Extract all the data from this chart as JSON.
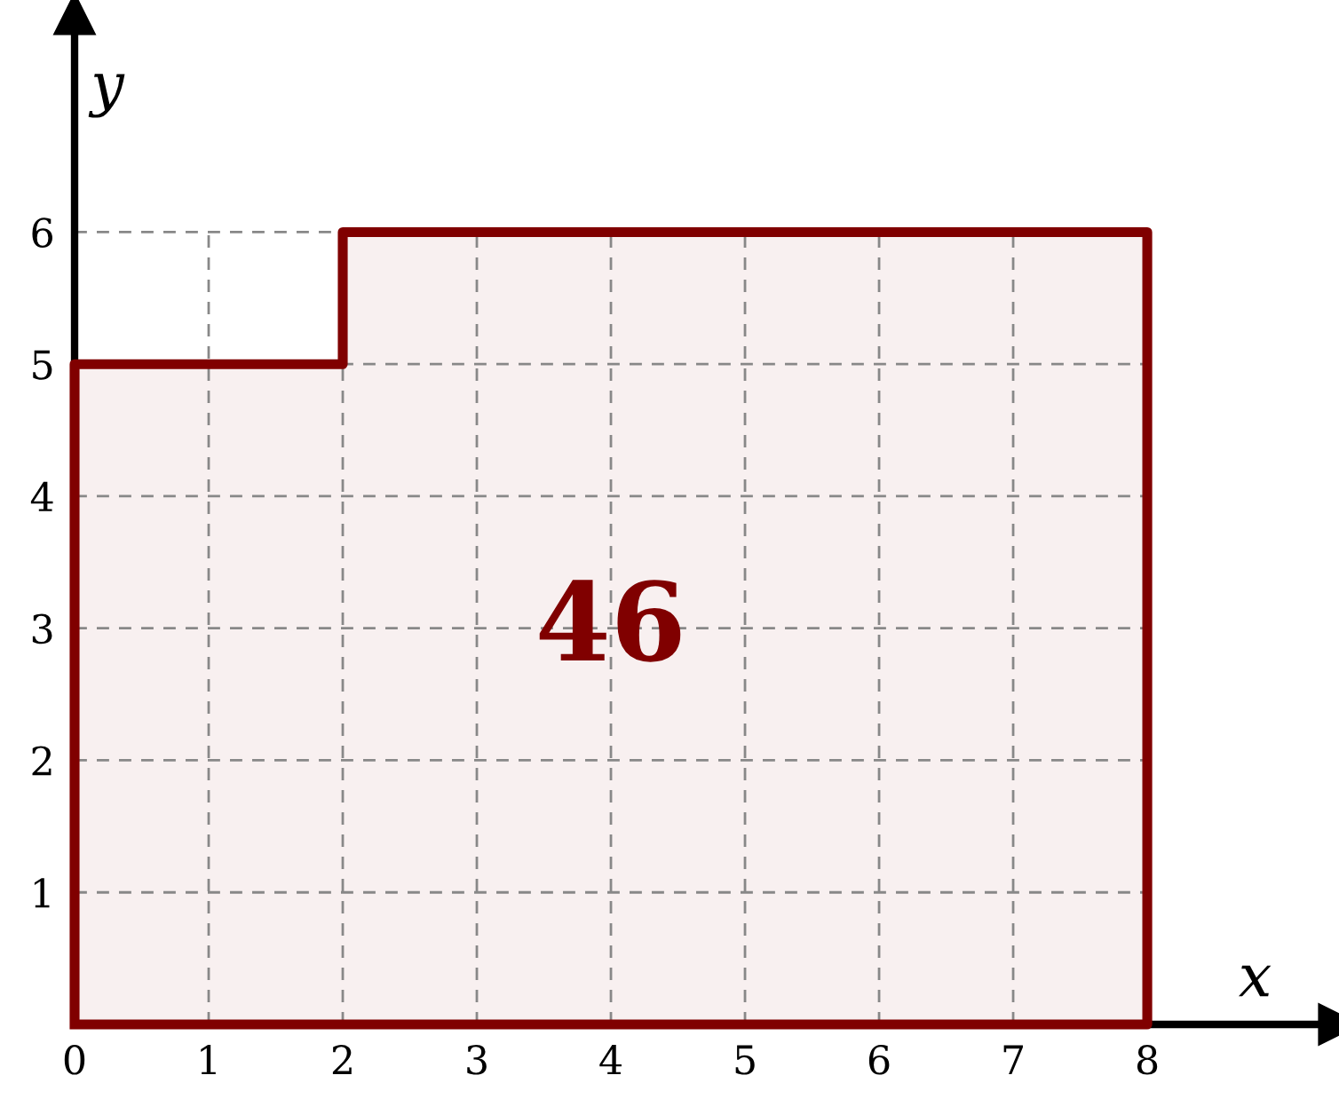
{
  "chart_data": {
    "type": "area",
    "x": [
      0,
      2,
      2,
      8
    ],
    "series": [
      {
        "color": "#800000",
        "values": [
          5,
          5,
          6,
          6
        ]
      }
    ],
    "xlabel": "x",
    "ylabel": "y",
    "xlim": [
      0,
      9.43
    ],
    "ylim": [
      0,
      7.65
    ],
    "xticks": [
      0,
      1,
      2,
      3,
      4,
      5,
      6,
      7,
      8
    ],
    "yticks": [
      {
        "value": 0,
        "label": null
      },
      1,
      2,
      3,
      4,
      5,
      6
    ],
    "grid": true,
    "line_style": "solid",
    "marker": "none",
    "annotations": [
      "46"
    ]
  }
}
